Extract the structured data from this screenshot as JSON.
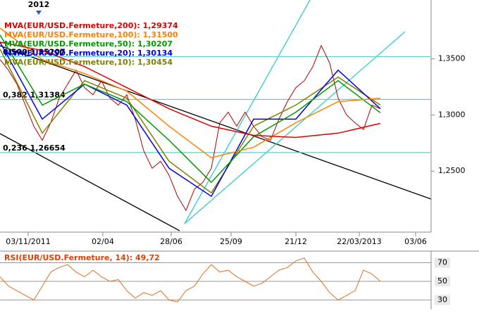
{
  "chart_data": {
    "type": "line",
    "top_label": "2012",
    "top_label_x": 55,
    "xlim": [
      0,
      612
    ],
    "ylim": [
      1.1956,
      1.4025
    ],
    "xticks": [
      {
        "value": 40,
        "label": "03/11/2011"
      },
      {
        "value": 146,
        "label": "02/04"
      },
      {
        "value": 243,
        "label": "28/06"
      },
      {
        "value": 328,
        "label": "25/09"
      },
      {
        "value": 420,
        "label": "21/12"
      },
      {
        "value": 510,
        "label": "22/03/2013"
      },
      {
        "value": 590,
        "label": "03/06"
      }
    ],
    "yticks": [
      {
        "value": 1.35,
        "label": "1,3500"
      },
      {
        "value": 1.3,
        "label": "1,3000"
      },
      {
        "value": 1.25,
        "label": "1,2500"
      }
    ],
    "fib_levels": [
      {
        "label": "0,500 1,35207",
        "value": 1.35207
      },
      {
        "label": "0,382 1,31384",
        "value": 1.31384
      },
      {
        "label": "0,236 1,26654",
        "value": 1.26654
      }
    ],
    "fib_color": "#66cccc",
    "price": {
      "color": "#b00000",
      "x": [
        0,
        12,
        24,
        36,
        48,
        60,
        72,
        84,
        96,
        108,
        120,
        132,
        144,
        156,
        168,
        180,
        192,
        204,
        216,
        228,
        240,
        252,
        264,
        276,
        288,
        300,
        312,
        324,
        336,
        348,
        360,
        372,
        384,
        396,
        408,
        420,
        432,
        444,
        456,
        468,
        480,
        492,
        504,
        516,
        528,
        540
      ],
      "values": [
        1.3494,
        1.34,
        1.3275,
        1.3088,
        1.29,
        1.2775,
        1.293,
        1.315,
        1.3275,
        1.34,
        1.3244,
        1.318,
        1.3306,
        1.315,
        1.3088,
        1.318,
        1.2963,
        1.268,
        1.2525,
        1.2588,
        1.2463,
        1.2275,
        1.215,
        1.2338,
        1.24,
        1.2525,
        1.293,
        1.3025,
        1.29,
        1.3025,
        1.29,
        1.2806,
        1.2775,
        1.2963,
        1.312,
        1.3244,
        1.3306,
        1.343,
        1.3619,
        1.3463,
        1.315,
        1.3,
        1.293,
        1.287,
        1.3088,
        1.3056
      ]
    },
    "series": [
      {
        "name": "MVA(EUR/USD.Fermeture,200): 1,29374",
        "color": "#e00000",
        "x": [
          0,
          60,
          120,
          180,
          240,
          300,
          360,
          420,
          480,
          540
        ],
        "values": [
          1.365,
          1.3575,
          1.3431,
          1.3244,
          1.3056,
          1.29,
          1.2819,
          1.28,
          1.2838,
          1.2925
        ]
      },
      {
        "name": "MVA(EUR/USD.Fermeture,100): 1,31500",
        "color": "#ff8000",
        "x": [
          0,
          60,
          120,
          180,
          240,
          300,
          360,
          420,
          480,
          540
        ],
        "values": [
          1.3775,
          1.3494,
          1.3369,
          1.3213,
          1.29,
          1.2619,
          1.2713,
          1.2931,
          1.3119,
          1.315
        ]
      },
      {
        "name": "MVA(EUR/USD.Fermeture,50): 1,30207",
        "color": "#009900",
        "x": [
          0,
          60,
          120,
          180,
          240,
          300,
          360,
          420,
          480,
          540
        ],
        "values": [
          1.3713,
          1.3088,
          1.3275,
          1.3119,
          1.2775,
          1.24,
          1.2806,
          1.3025,
          1.3306,
          1.302
        ]
      },
      {
        "name": "MVA(EUR/USD.Fermeture,20): 1,30134",
        "color": "#0000ee",
        "x": [
          0,
          60,
          120,
          180,
          240,
          300,
          360,
          420,
          480,
          540
        ],
        "values": [
          1.365,
          1.2963,
          1.3275,
          1.3088,
          1.2525,
          1.2275,
          1.2963,
          1.2963,
          1.34,
          1.3056
        ]
      },
      {
        "name": "MVA(EUR/USD.Fermeture,10): 1,30454",
        "color": "#808000",
        "x": [
          0,
          60,
          120,
          180,
          240,
          300,
          360,
          420,
          480,
          540
        ],
        "values": [
          1.3588,
          1.2838,
          1.3306,
          1.315,
          1.2588,
          1.2306,
          1.29,
          1.3088,
          1.3338,
          1.3088
        ]
      }
    ],
    "rsi": {
      "title": "RSI(EUR/USD.Fermeture, 14): 49,72",
      "color": "#e07020",
      "ylim": [
        23.6,
        82.5
      ],
      "yticks": [
        70,
        50,
        30
      ],
      "x": [
        0,
        12,
        24,
        36,
        48,
        60,
        72,
        84,
        96,
        108,
        120,
        132,
        144,
        156,
        168,
        180,
        192,
        204,
        216,
        228,
        240,
        252,
        264,
        276,
        288,
        300,
        312,
        324,
        336,
        348,
        360,
        372,
        384,
        396,
        408,
        420,
        432,
        444,
        456,
        468,
        480,
        492,
        504,
        516,
        528,
        540
      ],
      "values": [
        55,
        45,
        40,
        35,
        30,
        45,
        60,
        65,
        68,
        60,
        55,
        62,
        55,
        50,
        52,
        40,
        32,
        38,
        35,
        40,
        30,
        28,
        40,
        45,
        58,
        68,
        60,
        62,
        55,
        50,
        45,
        48,
        55,
        62,
        65,
        72,
        75,
        60,
        50,
        38,
        30,
        35,
        40,
        62,
        58,
        50
      ]
    }
  }
}
